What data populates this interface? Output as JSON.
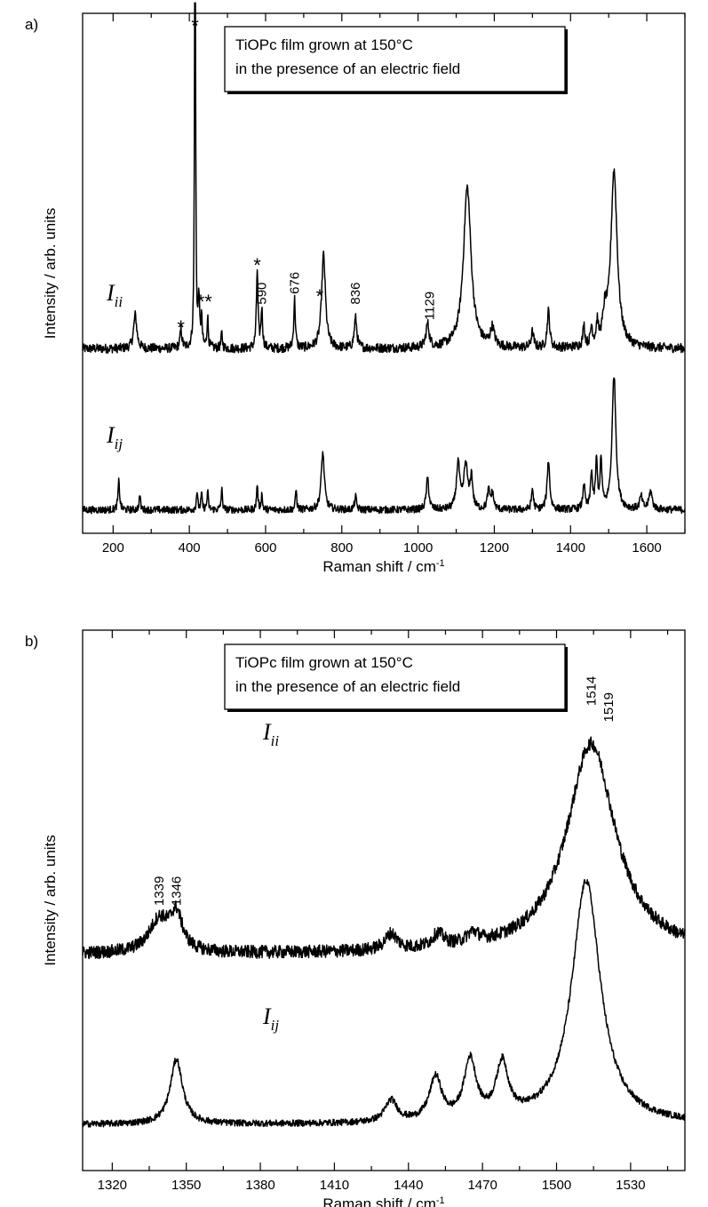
{
  "chart_data": [
    {
      "type": "line",
      "panel_label": "a)",
      "legend_box": [
        "TiOPc film grown at 150°C",
        "in the presence of an electric field"
      ],
      "xlabel": "Raman shift / cm",
      "xlabel_superscript": "-1",
      "ylabel": "Intensity / arb. units",
      "xlim": [
        120,
        1700
      ],
      "ylim": [
        0,
        1
      ],
      "xticks": [
        200,
        400,
        600,
        800,
        1000,
        1200,
        1400,
        1600
      ],
      "series": [
        {
          "name": "I_ii",
          "label_main": "I",
          "label_sub": "ii",
          "baseline": 0.355,
          "noise": 0.009,
          "peaks": [
            [
              258,
              0.065,
              5
            ],
            [
              378,
              0.035,
              3
            ],
            [
              415,
              1.05,
              1.5
            ],
            [
              425,
              0.095,
              2
            ],
            [
              432,
              0.055,
              2
            ],
            [
              448,
              0.06,
              2
            ],
            [
              485,
              0.03,
              2
            ],
            [
              578,
              0.15,
              2.5
            ],
            [
              590,
              0.075,
              2.5
            ],
            [
              676,
              0.095,
              2.5
            ],
            [
              752,
              0.18,
              6
            ],
            [
              836,
              0.058,
              4
            ],
            [
              1025,
              0.045,
              5
            ],
            [
              1129,
              0.31,
              12
            ],
            [
              1195,
              0.035,
              6
            ],
            [
              1300,
              0.03,
              4
            ],
            [
              1342,
              0.07,
              4
            ],
            [
              1435,
              0.04,
              3
            ],
            [
              1455,
              0.035,
              3
            ],
            [
              1470,
              0.04,
              3
            ],
            [
              1490,
              0.05,
              6
            ],
            [
              1514,
              0.34,
              10
            ]
          ]
        },
        {
          "name": "I_ij",
          "label_main": "I",
          "label_sub": "ij",
          "baseline": 0.045,
          "noise": 0.007,
          "peaks": [
            [
              215,
              0.055,
              2.5
            ],
            [
              270,
              0.03,
              2
            ],
            [
              420,
              0.035,
              2
            ],
            [
              432,
              0.03,
              2
            ],
            [
              448,
              0.035,
              2
            ],
            [
              485,
              0.04,
              2
            ],
            [
              578,
              0.05,
              2
            ],
            [
              590,
              0.03,
              2
            ],
            [
              680,
              0.04,
              2
            ],
            [
              750,
              0.11,
              5
            ],
            [
              836,
              0.025,
              3
            ],
            [
              1025,
              0.06,
              4
            ],
            [
              1105,
              0.09,
              5
            ],
            [
              1125,
              0.085,
              6
            ],
            [
              1140,
              0.06,
              4
            ],
            [
              1185,
              0.035,
              4
            ],
            [
              1195,
              0.03,
              4
            ],
            [
              1300,
              0.04,
              3
            ],
            [
              1342,
              0.095,
              4
            ],
            [
              1435,
              0.05,
              3
            ],
            [
              1455,
              0.07,
              3
            ],
            [
              1468,
              0.09,
              3
            ],
            [
              1480,
              0.09,
              3
            ],
            [
              1514,
              0.26,
              6
            ],
            [
              1585,
              0.025,
              4
            ],
            [
              1610,
              0.035,
              5
            ]
          ]
        }
      ],
      "annotations": [
        {
          "text": "*",
          "x": 415,
          "y": 0.98
        },
        {
          "text": "*",
          "x": 378,
          "y": 0.4
        },
        {
          "text": "**",
          "x": 440,
          "y": 0.45
        },
        {
          "text": "*",
          "x": 578,
          "y": 0.52
        },
        {
          "text": "*",
          "x": 645,
          "y": 0.355
        },
        {
          "text": "*",
          "x": 742,
          "y": 0.46
        },
        {
          "text": "590",
          "x": 590,
          "y": 0.44,
          "rotated": true
        },
        {
          "text": "676",
          "x": 676,
          "y": 0.46,
          "rotated": true
        },
        {
          "text": "836",
          "x": 836,
          "y": 0.44,
          "rotated": true
        },
        {
          "text": "1129",
          "x": 1030,
          "y": 0.41,
          "rotated": true
        }
      ]
    },
    {
      "type": "line",
      "panel_label": "b)",
      "legend_box": [
        "TiOPc film grown at 150°C",
        "in the presence of an electric field"
      ],
      "xlabel": "Raman shift / cm",
      "xlabel_superscript": "-1",
      "ylabel": "Intensity / arb. units",
      "xlim": [
        1308,
        1552
      ],
      "ylim": [
        0,
        1
      ],
      "xticks": [
        1320,
        1350,
        1380,
        1410,
        1440,
        1470,
        1500,
        1530
      ],
      "series": [
        {
          "name": "I_ii",
          "label_main": "I",
          "label_sub": "ii",
          "baseline": 0.4,
          "noise": 0.012,
          "peaks": [
            [
              1339,
              0.06,
              5
            ],
            [
              1346,
              0.065,
              3
            ],
            [
              1433,
              0.03,
              3
            ],
            [
              1452,
              0.025,
              3
            ],
            [
              1466,
              0.02,
              3
            ],
            [
              1514,
              0.39,
              12
            ]
          ]
        },
        {
          "name": "I_ij",
          "label_main": "I",
          "label_sub": "ij",
          "baseline": 0.085,
          "noise": 0.006,
          "peaks": [
            [
              1346,
              0.12,
              3
            ],
            [
              1433,
              0.04,
              3
            ],
            [
              1451,
              0.08,
              3
            ],
            [
              1465,
              0.11,
              3
            ],
            [
              1478,
              0.1,
              3
            ],
            [
              1512,
              0.45,
              7
            ]
          ]
        }
      ],
      "annotations": [
        {
          "text": "1339",
          "x": 1339,
          "y": 0.49,
          "rotated": true
        },
        {
          "text": "1346",
          "x": 1346,
          "y": 0.49,
          "rotated": true
        },
        {
          "text": "1514",
          "x": 1514,
          "y": 0.86,
          "rotated": true
        },
        {
          "text": "1519",
          "x": 1521,
          "y": 0.83,
          "rotated": true
        }
      ]
    }
  ]
}
